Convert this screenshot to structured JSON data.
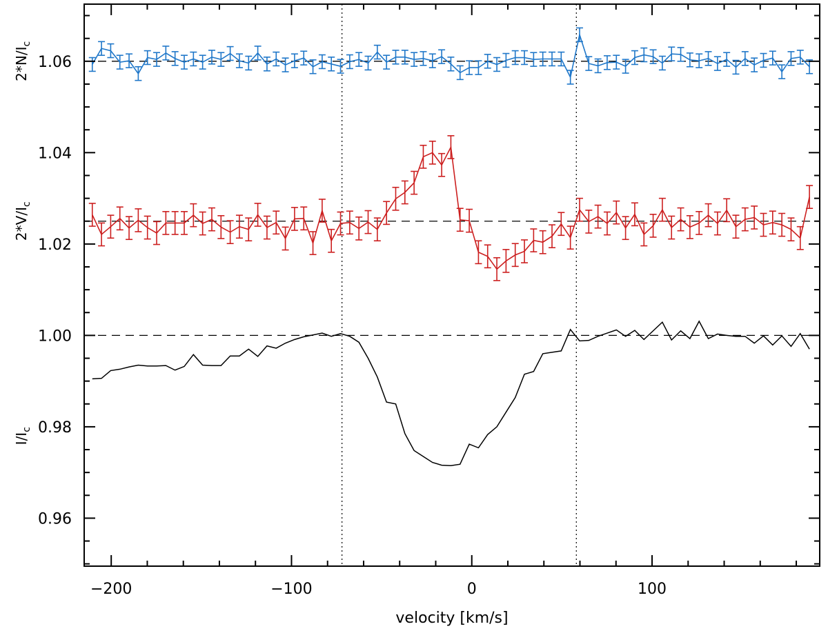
{
  "chart_data": {
    "type": "line",
    "xlabel": "velocity [km/s]",
    "xlim": [
      -215,
      193
    ],
    "ylim": [
      0.9495,
      1.0725
    ],
    "x_ticks": [
      -200,
      -100,
      0,
      100
    ],
    "x_tick_labels": [
      "−200",
      "−100",
      "0",
      "100"
    ],
    "y_ticks": [
      0.96,
      0.98,
      1.0,
      1.02,
      1.04,
      1.06
    ],
    "y_tick_labels": [
      "0.96",
      "0.98",
      "1.00",
      "1.02",
      "1.04",
      "1.06"
    ],
    "y_panel_labels": [
      {
        "name": "stokes-n",
        "base": "2*N/I",
        "sub": "c",
        "y": 1.06
      },
      {
        "name": "stokes-v",
        "base": "2*V/I",
        "sub": "c",
        "y": 1.025
      },
      {
        "name": "stokes-i",
        "base": "I/I",
        "sub": "c",
        "y": 0.978
      }
    ],
    "reference_lines": [
      1.06,
      1.025,
      1.0
    ],
    "vertical_lines": [
      -72,
      58
    ],
    "x": [
      -210.5,
      -205.4,
      -200.3,
      -195.2,
      -190.1,
      -185.0,
      -179.9,
      -174.8,
      -169.7,
      -164.6,
      -159.5,
      -154.4,
      -149.3,
      -144.2,
      -139.1,
      -134.0,
      -128.9,
      -123.8,
      -118.7,
      -113.6,
      -108.5,
      -103.4,
      -98.3,
      -93.2,
      -88.1,
      -83.0,
      -77.9,
      -72.8,
      -67.7,
      -62.6,
      -57.5,
      -52.4,
      -47.3,
      -42.2,
      -37.1,
      -32.0,
      -26.9,
      -21.8,
      -16.7,
      -11.6,
      -6.5,
      -1.4,
      3.7,
      8.8,
      13.9,
      19.0,
      24.1,
      29.2,
      34.3,
      39.4,
      44.5,
      49.6,
      54.7,
      59.8,
      64.9,
      70.0,
      75.1,
      80.2,
      85.3,
      90.4,
      95.5,
      100.6,
      105.7,
      110.8,
      115.9,
      121.0,
      126.1,
      131.2,
      136.3,
      141.4,
      146.5,
      151.6,
      156.7,
      161.8,
      166.9,
      172.0,
      177.1,
      182.2,
      187.3
    ],
    "series": [
      {
        "name": "2*N/Ic",
        "color": "#1f77c9",
        "error_bars": true,
        "values": [
          1.0593,
          1.0628,
          1.0623,
          1.0598,
          1.0601,
          1.0573,
          1.0608,
          1.0604,
          1.0618,
          1.0606,
          1.0598,
          1.0605,
          1.0598,
          1.0609,
          1.0604,
          1.0617,
          1.0601,
          1.0596,
          1.0618,
          1.0594,
          1.0605,
          1.0592,
          1.0601,
          1.0607,
          1.0588,
          1.0599,
          1.0594,
          1.0589,
          1.0599,
          1.0604,
          1.0596,
          1.062,
          1.0598,
          1.0609,
          1.0609,
          1.0604,
          1.0606,
          1.0601,
          1.061,
          1.0594,
          1.0575,
          1.0586,
          1.0586,
          1.06,
          1.0593,
          1.0602,
          1.0608,
          1.0608,
          1.0604,
          1.0605,
          1.0605,
          1.0605,
          1.0565,
          1.0658,
          1.0595,
          1.059,
          1.0597,
          1.0598,
          1.0589,
          1.0608,
          1.0614,
          1.061,
          1.0596,
          1.0616,
          1.0615,
          1.0603,
          1.0601,
          1.0606,
          1.0595,
          1.0604,
          1.0587,
          1.0606,
          1.0592,
          1.0602,
          1.0607,
          1.0577,
          1.0606,
          1.0609,
          1.0588
        ],
        "errors": [
          0.0015,
          0.0015,
          0.0015,
          0.0015,
          0.0015,
          0.0015,
          0.0015,
          0.0015,
          0.0015,
          0.0015,
          0.0015,
          0.0015,
          0.0015,
          0.0015,
          0.0015,
          0.0015,
          0.0015,
          0.0015,
          0.0015,
          0.0015,
          0.0015,
          0.0015,
          0.0015,
          0.0015,
          0.0015,
          0.0015,
          0.0015,
          0.0015,
          0.0015,
          0.0015,
          0.0015,
          0.0015,
          0.0015,
          0.0015,
          0.0015,
          0.0015,
          0.0015,
          0.0015,
          0.0015,
          0.0015,
          0.0015,
          0.0015,
          0.0015,
          0.0015,
          0.0015,
          0.0015,
          0.0015,
          0.0015,
          0.0015,
          0.0015,
          0.0015,
          0.0015,
          0.0015,
          0.0015,
          0.0015,
          0.0015,
          0.0015,
          0.0015,
          0.0015,
          0.0015,
          0.0015,
          0.0015,
          0.0015,
          0.0015,
          0.0015,
          0.0015,
          0.0015,
          0.0015,
          0.0015,
          0.0015,
          0.0015,
          0.0015,
          0.0015,
          0.0015,
          0.0015,
          0.0015,
          0.0015,
          0.0015,
          0.0015
        ]
      },
      {
        "name": "2*V/Ic",
        "color": "#cc1f1f",
        "error_bars": true,
        "values": [
          1.0264,
          1.0221,
          1.0238,
          1.0256,
          1.0235,
          1.0252,
          1.0236,
          1.0224,
          1.0246,
          1.0246,
          1.0246,
          1.0263,
          1.0245,
          1.0254,
          1.0237,
          1.0226,
          1.0238,
          1.0232,
          1.0264,
          1.0236,
          1.0247,
          1.0212,
          1.0255,
          1.0256,
          1.0202,
          1.0273,
          1.0207,
          1.0245,
          1.0247,
          1.0234,
          1.0248,
          1.0232,
          1.0268,
          1.0299,
          1.0313,
          1.0334,
          1.0391,
          1.04,
          1.0373,
          1.0412,
          1.0253,
          1.0251,
          1.0182,
          1.0173,
          1.0145,
          1.0163,
          1.0176,
          1.0184,
          1.0208,
          1.0204,
          1.0217,
          1.0244,
          1.0214,
          1.0275,
          1.0249,
          1.026,
          1.0245,
          1.0269,
          1.0235,
          1.0265,
          1.0221,
          1.024,
          1.0275,
          1.0236,
          1.0254,
          1.0237,
          1.0246,
          1.0263,
          1.0245,
          1.0274,
          1.0238,
          1.0254,
          1.0258,
          1.0242,
          1.0247,
          1.0242,
          1.0232,
          1.0213,
          1.0303
        ],
        "errors": [
          0.0025,
          0.0025,
          0.0025,
          0.0025,
          0.0025,
          0.0025,
          0.0025,
          0.0025,
          0.0025,
          0.0025,
          0.0025,
          0.0025,
          0.0025,
          0.0025,
          0.0025,
          0.0025,
          0.0025,
          0.0025,
          0.0025,
          0.0025,
          0.0025,
          0.0025,
          0.0025,
          0.0025,
          0.0025,
          0.0025,
          0.0025,
          0.0025,
          0.0025,
          0.0025,
          0.0025,
          0.0025,
          0.0025,
          0.0025,
          0.0025,
          0.0025,
          0.0025,
          0.0025,
          0.0025,
          0.0025,
          0.0025,
          0.0025,
          0.0025,
          0.0025,
          0.0025,
          0.0025,
          0.0025,
          0.0025,
          0.0025,
          0.0025,
          0.0025,
          0.0025,
          0.0025,
          0.0025,
          0.0025,
          0.0025,
          0.0025,
          0.0025,
          0.0025,
          0.0025,
          0.0025,
          0.0025,
          0.0025,
          0.0025,
          0.0025,
          0.0025,
          0.0025,
          0.0025,
          0.0025,
          0.0025,
          0.0025,
          0.0025,
          0.0025,
          0.0025,
          0.0025,
          0.0025,
          0.0025,
          0.0025,
          0.0025
        ]
      },
      {
        "name": "I/Ic",
        "color": "#000000",
        "error_bars": false,
        "values": [
          0.9905,
          0.9906,
          0.9923,
          0.9926,
          0.9931,
          0.9935,
          0.9933,
          0.9933,
          0.9934,
          0.9924,
          0.9932,
          0.9958,
          0.9935,
          0.9934,
          0.9934,
          0.9955,
          0.9955,
          0.997,
          0.9954,
          0.9977,
          0.9972,
          0.9983,
          0.9991,
          0.9997,
          1.0001,
          1.0005,
          0.9998,
          1.0004,
          0.9998,
          0.9985,
          0.995,
          0.9909,
          0.9854,
          0.985,
          0.9785,
          0.9748,
          0.9735,
          0.9722,
          0.9716,
          0.9715,
          0.9718,
          0.9762,
          0.9754,
          0.9783,
          0.98,
          0.9832,
          0.9864,
          0.9915,
          0.9921,
          0.996,
          0.9963,
          0.9966,
          1.0013,
          0.9988,
          0.9989,
          0.9998,
          1.0005,
          1.0012,
          0.9998,
          1.0011,
          0.9991,
          1.001,
          1.0029,
          0.999,
          1.001,
          0.9993,
          1.0031,
          0.9993,
          1.0003,
          1.0,
          0.9998,
          0.9998,
          0.9983,
          0.9999,
          0.9979,
          0.9999,
          0.9976,
          1.0004,
          0.997
        ]
      }
    ]
  }
}
